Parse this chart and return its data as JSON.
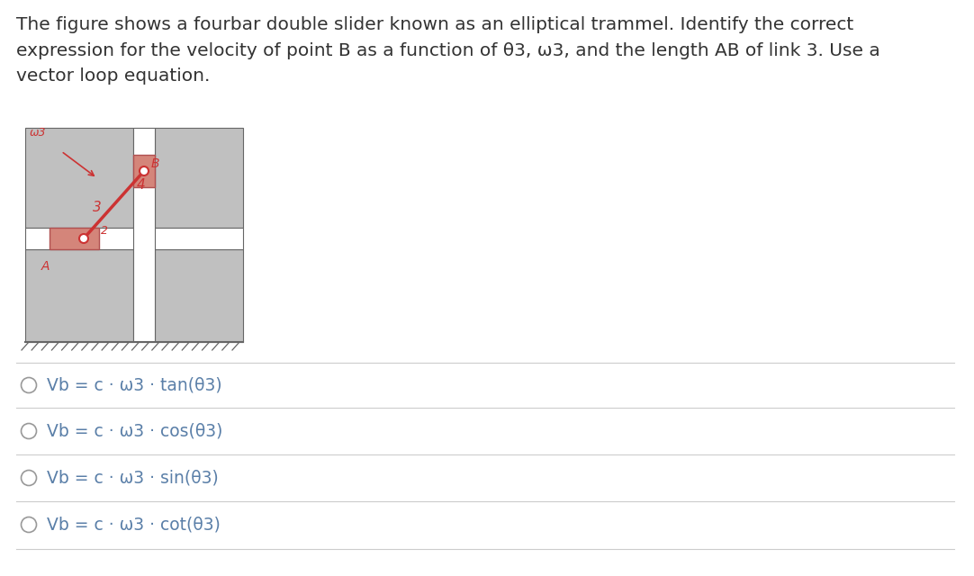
{
  "background_color": "#ffffff",
  "title_text": "The figure shows a fourbar double slider known as an elliptical trammel. Identify the correct\nexpression for the velocity of point B as a function of θ3, ω3, and the length AB of link 3. Use a\nvector loop equation.",
  "title_fontsize": 14.5,
  "title_color": "#333333",
  "options": [
    "Vb = c · ω3 · tan(θ3)",
    "Vb = c · ω3 · cos(θ3)",
    "Vb = c · ω3 · sin(θ3)",
    "Vb = c · ω3 · cot(θ3)"
  ],
  "option_color": "#5a7fa8",
  "option_fontsize": 13.5,
  "separator_color": "#cccccc",
  "slider_color": "#c0c0c0",
  "slider_border": "#666666",
  "link_color": "#cc3333",
  "slider_highlight": "#d4857a",
  "slider_highlight_border": "#b05050"
}
